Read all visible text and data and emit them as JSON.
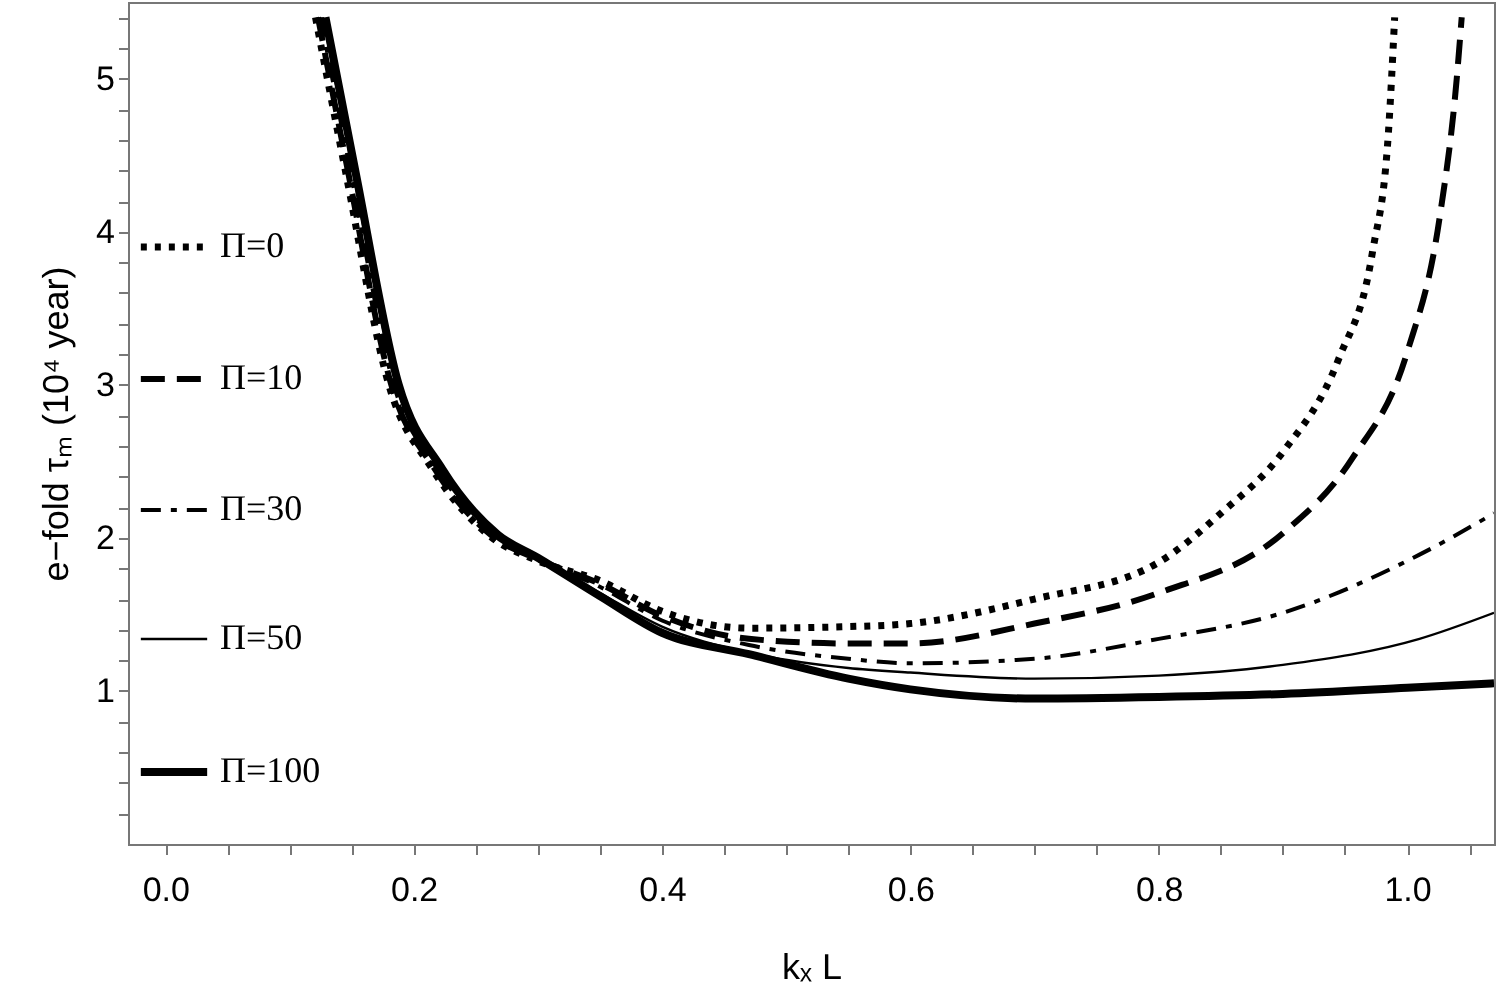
{
  "chart_data": {
    "type": "line",
    "xlabel": "kₓ L",
    "ylabel": "e−fold τₘ (10⁴ year)",
    "xlim": [
      -0.03,
      1.07
    ],
    "ylim": [
      0,
      5.5
    ],
    "xticks": [
      {
        "value": 0,
        "label": "0.0"
      },
      {
        "value": 0.05,
        "label": null
      },
      {
        "value": 0.1,
        "label": null
      },
      {
        "value": 0.15,
        "label": null
      },
      {
        "value": 0.2,
        "label": "0.2"
      },
      {
        "value": 0.25,
        "label": null
      },
      {
        "value": 0.3,
        "label": null
      },
      {
        "value": 0.35,
        "label": null
      },
      {
        "value": 0.4,
        "label": "0.4"
      },
      {
        "value": 0.45,
        "label": null
      },
      {
        "value": 0.5,
        "label": null
      },
      {
        "value": 0.55,
        "label": null
      },
      {
        "value": 0.6,
        "label": "0.6"
      },
      {
        "value": 0.65,
        "label": null
      },
      {
        "value": 0.7,
        "label": null
      },
      {
        "value": 0.75,
        "label": null
      },
      {
        "value": 0.8,
        "label": "0.8"
      },
      {
        "value": 0.85,
        "label": null
      },
      {
        "value": 0.9,
        "label": null
      },
      {
        "value": 0.95,
        "label": null
      },
      {
        "value": 1.0,
        "label": "1.0"
      },
      {
        "value": 1.05,
        "label": null
      }
    ],
    "yticks": [
      {
        "value": 0.2,
        "label": null
      },
      {
        "value": 0.4,
        "label": null
      },
      {
        "value": 0.6,
        "label": null
      },
      {
        "value": 0.8,
        "label": null
      },
      1,
      {
        "value": 1.2,
        "label": null
      },
      {
        "value": 1.4,
        "label": null
      },
      {
        "value": 1.6,
        "label": null
      },
      {
        "value": 1.8,
        "label": null
      },
      2,
      {
        "value": 2.2,
        "label": null
      },
      {
        "value": 2.4,
        "label": null
      },
      {
        "value": 2.6,
        "label": null
      },
      {
        "value": 2.8,
        "label": null
      },
      3,
      {
        "value": 3.2,
        "label": null
      },
      {
        "value": 3.4,
        "label": null
      },
      {
        "value": 3.6,
        "label": null
      },
      {
        "value": 3.8,
        "label": null
      },
      4,
      {
        "value": 4.2,
        "label": null
      },
      {
        "value": 4.4,
        "label": null
      },
      {
        "value": 4.6,
        "label": null
      },
      {
        "value": 4.8,
        "label": null
      },
      5,
      {
        "value": 5.2,
        "label": null
      },
      {
        "value": 5.4,
        "label": null
      }
    ],
    "grid": false,
    "legend": "left",
    "marker": "none",
    "series": [
      {
        "name": "Π=0",
        "color": "#000000",
        "line_style": "dotted",
        "x": [
          0.121,
          0.145,
          0.18,
          0.215,
          0.26,
          0.3,
          0.35,
          0.4,
          0.47,
          0.55,
          0.6,
          0.7,
          0.8,
          0.85,
          0.9,
          0.945,
          0.972,
          0.985,
          0.99
        ],
        "values": [
          5.4,
          4.4,
          3.0,
          2.45,
          2.02,
          1.85,
          1.72,
          1.52,
          1.41,
          1.42,
          1.44,
          1.6,
          1.84,
          2.16,
          2.56,
          3.17,
          3.86,
          4.65,
          5.4
        ]
      },
      {
        "name": "Π=10",
        "color": "#000000",
        "line_style": "dashed",
        "x": [
          0.123,
          0.147,
          0.182,
          0.217,
          0.262,
          0.3,
          0.35,
          0.4,
          0.47,
          0.55,
          0.6,
          0.7,
          0.8,
          0.9,
          0.956,
          1.0,
          1.026,
          1.04,
          1.044
        ],
        "values": [
          5.4,
          4.4,
          3.0,
          2.45,
          2.02,
          1.86,
          1.7,
          1.49,
          1.34,
          1.31,
          1.31,
          1.44,
          1.64,
          2.03,
          2.52,
          3.21,
          4.08,
          5.0,
          5.4
        ]
      },
      {
        "name": "Π=30",
        "color": "#000000",
        "line_style": "dashdot",
        "x": [
          0.125,
          0.149,
          0.184,
          0.219,
          0.264,
          0.3,
          0.35,
          0.4,
          0.47,
          0.55,
          0.6,
          0.7,
          0.8,
          0.9,
          1.01,
          1.07
        ],
        "values": [
          5.4,
          4.4,
          3.0,
          2.45,
          2.02,
          1.86,
          1.68,
          1.46,
          1.3,
          1.21,
          1.18,
          1.21,
          1.34,
          1.51,
          1.89,
          2.16
        ]
      },
      {
        "name": "Π=50",
        "color": "#000000",
        "line_style": "solid",
        "x": [
          0.127,
          0.151,
          0.186,
          0.221,
          0.266,
          0.3,
          0.35,
          0.4,
          0.47,
          0.55,
          0.6,
          0.7,
          0.8,
          0.9,
          1.01,
          1.07
        ],
        "values": [
          5.4,
          4.4,
          3.0,
          2.45,
          2.02,
          1.87,
          1.64,
          1.42,
          1.25,
          1.15,
          1.12,
          1.08,
          1.1,
          1.17,
          1.34,
          1.51
        ]
      },
      {
        "name": "Π=100",
        "color": "#000000",
        "line_style": "solid",
        "x": [
          0.129,
          0.153,
          0.188,
          0.223,
          0.268,
          0.3,
          0.35,
          0.4,
          0.47,
          0.55,
          0.6,
          0.7,
          0.8,
          0.9,
          1.0,
          1.07
        ],
        "values": [
          5.4,
          4.4,
          3.0,
          2.45,
          2.02,
          1.87,
          1.62,
          1.38,
          1.24,
          1.08,
          1.01,
          0.95,
          0.96,
          0.98,
          1.02,
          1.05
        ]
      }
    ]
  }
}
